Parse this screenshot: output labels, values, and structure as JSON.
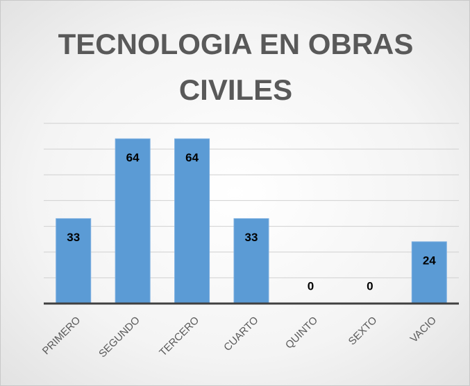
{
  "chart_data": {
    "type": "bar",
    "title": "TECNOLOGIA EN OBRAS CIVILES",
    "categories": [
      "PRIMERO",
      "SEGUNDO",
      "TERCERO",
      "CUARTO",
      "QUINTO",
      "SEXTO",
      "VACIO"
    ],
    "values": [
      33,
      64,
      64,
      33,
      0,
      0,
      24
    ],
    "color": "#5b9bd5",
    "ylim": [
      0,
      70
    ],
    "yticks": [
      0,
      10,
      20,
      30,
      40,
      50,
      60,
      70
    ],
    "grid": true
  }
}
